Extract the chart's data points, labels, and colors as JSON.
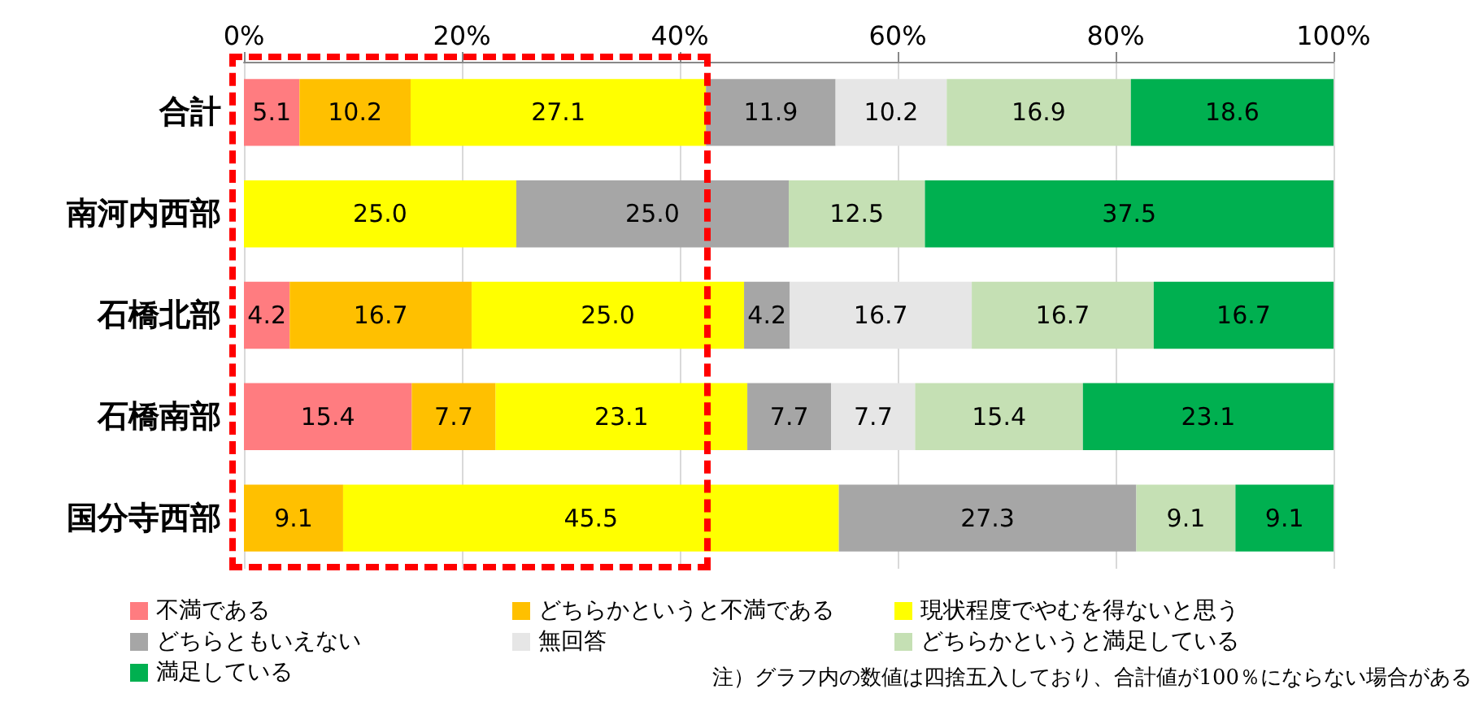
{
  "chart_data": {
    "type": "bar",
    "orientation": "horizontal",
    "stacked": true,
    "grid": "x",
    "legend": "bottom",
    "categories": [
      "合計",
      "南河内西部",
      "石橋北部",
      "石橋南部",
      "国分寺西部"
    ],
    "xlim": [
      0,
      100
    ],
    "xticks": [
      {
        "value": 0,
        "label": "0%"
      },
      {
        "value": 20,
        "label": "20%"
      },
      {
        "value": 40,
        "label": "40%"
      },
      {
        "value": 60,
        "label": "60%"
      },
      {
        "value": 80,
        "label": "80%"
      },
      {
        "value": 100,
        "label": "100%"
      }
    ],
    "series": [
      {
        "name": "不満である",
        "color": "#ff7c80",
        "values": [
          5.1,
          null,
          4.2,
          15.4,
          null
        ],
        "value_labels": [
          "5.1",
          null,
          "4.2",
          "15.4",
          null
        ]
      },
      {
        "name": "どちらかというと不満である",
        "color": "#ffc000",
        "values": [
          10.2,
          null,
          16.7,
          7.7,
          9.1
        ],
        "value_labels": [
          "10.2",
          null,
          "16.7",
          "7.7",
          "9.1"
        ]
      },
      {
        "name": "現状程度でやむを得ないと思う",
        "color": "#ffff00",
        "values": [
          27.1,
          25.0,
          25.0,
          23.1,
          45.5
        ],
        "value_labels": [
          "27.1",
          "25.0",
          "25.0",
          "23.1",
          "45.5"
        ]
      },
      {
        "name": "どちらともいえない",
        "color": "#a6a6a6",
        "values": [
          11.9,
          25.0,
          4.2,
          7.7,
          27.3
        ],
        "value_labels": [
          "11.9",
          "25.0",
          "4.2",
          "7.7",
          "27.3"
        ]
      },
      {
        "name": "無回答",
        "color": "#e6e6e6",
        "values": [
          10.2,
          null,
          16.7,
          7.7,
          null
        ],
        "value_labels": [
          "10.2",
          null,
          "16.7",
          "7.7",
          null
        ]
      },
      {
        "name": "どちらかというと満足している",
        "color": "#c5e0b4",
        "values": [
          16.9,
          12.5,
          16.7,
          15.4,
          9.1
        ],
        "value_labels": [
          "16.9",
          "12.5",
          "16.7",
          "15.4",
          "9.1"
        ]
      },
      {
        "name": "満足している",
        "color": "#00b050",
        "values": [
          18.6,
          37.5,
          16.7,
          23.1,
          9.1
        ],
        "value_labels": [
          "18.6",
          "37.5",
          "16.7",
          "23.1",
          "9.1"
        ]
      }
    ],
    "annotations": [
      "注）グラフ内の数値は四捨五入しており、合計値が100％にならない場合がある"
    ]
  }
}
